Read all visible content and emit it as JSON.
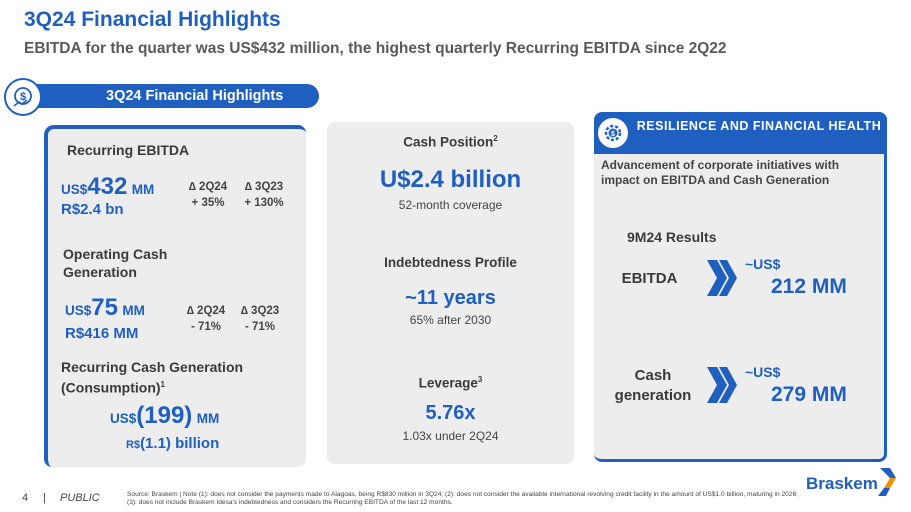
{
  "header": {
    "title": "3Q24 Financial Highlights",
    "subtitle": "EBITDA for the quarter was US$432 million, the highest quarterly Recurring EBITDA since 2Q22"
  },
  "section": {
    "label": "3Q24 Financial Highlights",
    "icon": "dollar-growth-icon"
  },
  "left": {
    "ebitda": {
      "label": "Recurring EBITDA",
      "currency": "US$",
      "value": "432",
      "unit": "MM",
      "brl": "R$2.4 bn",
      "deltas": [
        {
          "period": "2Q24",
          "value": "+ 35%"
        },
        {
          "period": "3Q23",
          "value": "+ 130%"
        }
      ]
    },
    "ocg": {
      "label_line1": "Operating Cash",
      "label_line2": "Generation",
      "currency": "US$",
      "value": "75",
      "unit": "MM",
      "brl": "R$416 MM",
      "deltas": [
        {
          "period": "2Q24",
          "value": "- 71%"
        },
        {
          "period": "3Q23",
          "value": "- 71%"
        }
      ]
    },
    "rcg": {
      "label_line1": "Recurring Cash Generation",
      "label_line2": "(Consumption)",
      "note": "1",
      "currency": "US$",
      "value": "(199)",
      "unit": "MM",
      "brl_prefix": "R$",
      "brl": "(1.1) billion"
    },
    "delta_symbol": "∆"
  },
  "middle": {
    "cash": {
      "label": "Cash Position",
      "note": "2",
      "value": "U$2.4 billion",
      "sub": "52-month coverage"
    },
    "debt": {
      "label": "Indebtedness Profile",
      "value": "~11 years",
      "sub": "65% after 2030"
    },
    "leverage": {
      "label": "Leverage",
      "note": "3",
      "value": "5.76x",
      "sub": "1.03x under 2Q24"
    }
  },
  "right": {
    "title": "RESILIENCE AND FINANCIAL HEALTH",
    "icon": "gear-dollar-icon",
    "description": "Advancement of corporate initiatives with impact on EBITDA and Cash Generation",
    "results_label": "9M24 Results",
    "ebitda": {
      "label": "EBITDA",
      "prefix": "~US$",
      "value": "212 MM"
    },
    "cash": {
      "label_line1": "Cash",
      "label_line2": "generation",
      "prefix": "~US$",
      "value": "279 MM"
    }
  },
  "footer": {
    "page": "4",
    "separator": "|",
    "classification": "PUBLIC",
    "source": "Source: Braskem | Note (1): does not consider the payments made to Alagoas, being R$830 million in 3Q24; (2): does not consider the available international revolving credit facility in the amount of US$1.0 billion, maturing in 2026; (3): does not include Braskem Idesa's indebtedness and considers the Recurring EBITDA of the last 12 months.",
    "logo": "Braskem"
  },
  "colors": {
    "brand_blue": "#1f5fc0",
    "card_gray": "#ededed"
  }
}
